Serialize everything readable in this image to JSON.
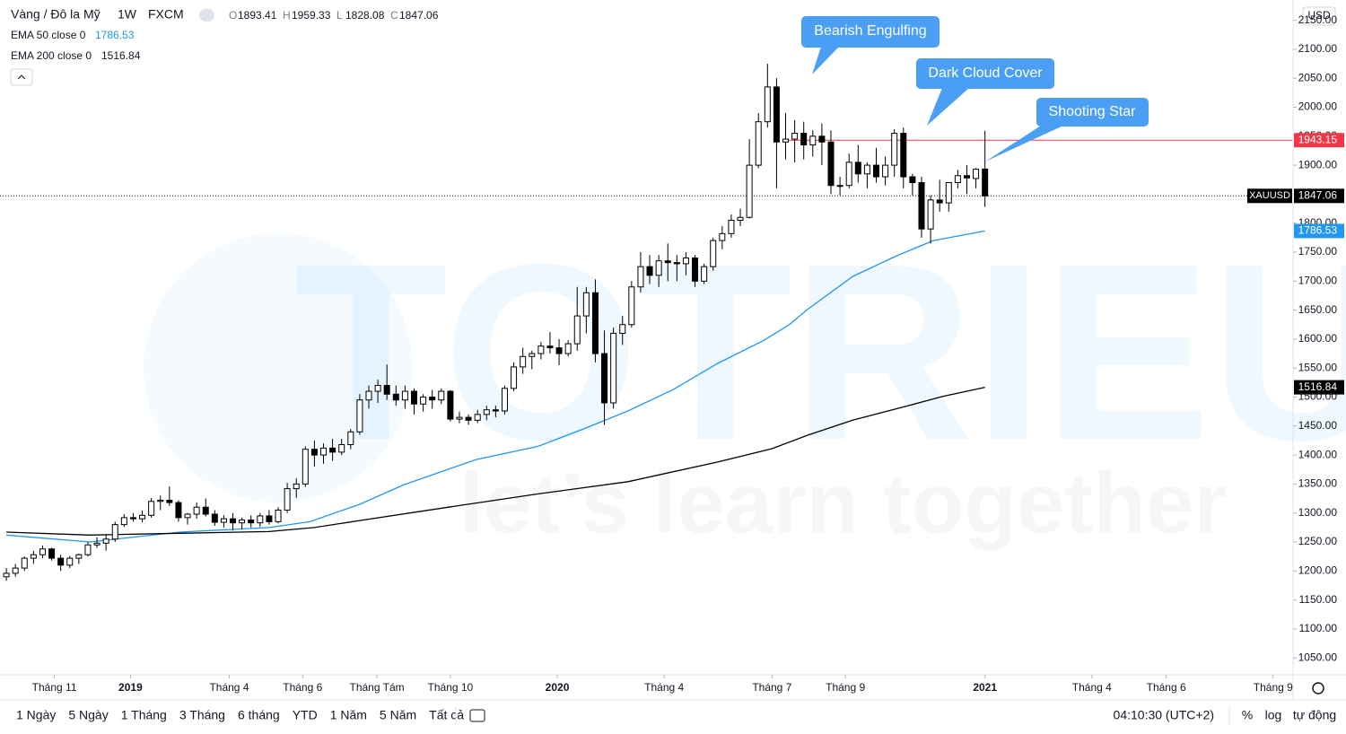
{
  "chart_data": {
    "type": "candlestick",
    "title": "Vàng / Đô la Mỹ",
    "interval": "1W",
    "source": "FXCM",
    "ohlc_labels": [
      "O",
      "H",
      "L",
      "C"
    ],
    "currency": "USD",
    "ylim": [
      1024,
      2185
    ],
    "yticks": [
      {
        "value": 1050,
        "label": "1050.00"
      },
      {
        "value": 1100,
        "label": "1100.00"
      },
      {
        "value": 1150,
        "label": "1150.00"
      },
      {
        "value": 1200,
        "label": "1200.00"
      },
      {
        "value": 1250,
        "label": "1250.00"
      },
      {
        "value": 1300,
        "label": "1300.00"
      },
      {
        "value": 1350,
        "label": "1350.00"
      },
      {
        "value": 1400,
        "label": "1400.00"
      },
      {
        "value": 1450,
        "label": "1450.00"
      },
      {
        "value": 1500,
        "label": "1500.00"
      },
      {
        "value": 1550,
        "label": "1550.00"
      },
      {
        "value": 1600,
        "label": "1600.00"
      },
      {
        "value": 1650,
        "label": "1650.00"
      },
      {
        "value": 1700,
        "label": "1700.00"
      },
      {
        "value": 1750,
        "label": "1750.00"
      },
      {
        "value": 1800,
        "label": "1800.00"
      },
      {
        "value": 1850,
        "label": "1850.00"
      },
      {
        "value": 1900,
        "label": "1900.00"
      },
      {
        "value": 1950,
        "label": "1950.00"
      },
      {
        "value": 2000,
        "label": "2000.00"
      },
      {
        "value": 2050,
        "label": "2050.00"
      },
      {
        "value": 2100,
        "label": "2100.00"
      },
      {
        "value": 2150,
        "label": "2150.00"
      }
    ],
    "xlim": [
      -0.7,
      141.9
    ],
    "xticks": [
      {
        "value": 5.3,
        "label": "Tháng 11"
      },
      {
        "value": 13.7,
        "label": "2019"
      },
      {
        "value": 24.6,
        "label": "Tháng 4"
      },
      {
        "value": 32.7,
        "label": "Tháng 6"
      },
      {
        "value": 40.9,
        "label": "Tháng Tám"
      },
      {
        "value": 49,
        "label": "Tháng 10"
      },
      {
        "value": 60.8,
        "label": "2020"
      },
      {
        "value": 72.6,
        "label": "Tháng 4"
      },
      {
        "value": 84.5,
        "label": "Tháng 7"
      },
      {
        "value": 92.6,
        "label": "Tháng 9"
      },
      {
        "value": 108,
        "label": "2021"
      },
      {
        "value": 119.8,
        "label": "Tháng 4"
      },
      {
        "value": 128,
        "label": "Tháng 6"
      },
      {
        "value": 139.8,
        "label": "Tháng 9"
      }
    ],
    "grid": false,
    "up_color": "#ffffff",
    "down_color": "#000000",
    "ohlc": [
      [
        1190,
        1205,
        1183,
        1196
      ],
      [
        1196,
        1212,
        1190,
        1205
      ],
      [
        1205,
        1225,
        1200,
        1222
      ],
      [
        1222,
        1235,
        1212,
        1228
      ],
      [
        1228,
        1244,
        1222,
        1238
      ],
      [
        1238,
        1240,
        1218,
        1222
      ],
      [
        1222,
        1228,
        1200,
        1210
      ],
      [
        1210,
        1226,
        1205,
        1222
      ],
      [
        1222,
        1230,
        1212,
        1228
      ],
      [
        1228,
        1250,
        1225,
        1245
      ],
      [
        1245,
        1258,
        1240,
        1248
      ],
      [
        1248,
        1262,
        1235,
        1255
      ],
      [
        1255,
        1285,
        1250,
        1280
      ],
      [
        1280,
        1298,
        1276,
        1292
      ],
      [
        1292,
        1300,
        1285,
        1290
      ],
      [
        1290,
        1304,
        1284,
        1296
      ],
      [
        1296,
        1326,
        1292,
        1320
      ],
      [
        1320,
        1330,
        1305,
        1322
      ],
      [
        1322,
        1346,
        1312,
        1318
      ],
      [
        1318,
        1322,
        1285,
        1292
      ],
      [
        1292,
        1300,
        1280,
        1298
      ],
      [
        1298,
        1318,
        1290,
        1310
      ],
      [
        1310,
        1325,
        1294,
        1298
      ],
      [
        1298,
        1305,
        1278,
        1284
      ],
      [
        1284,
        1296,
        1275,
        1290
      ],
      [
        1290,
        1300,
        1270,
        1283
      ],
      [
        1283,
        1292,
        1272,
        1288
      ],
      [
        1288,
        1296,
        1275,
        1283
      ],
      [
        1283,
        1300,
        1276,
        1295
      ],
      [
        1295,
        1305,
        1280,
        1285
      ],
      [
        1285,
        1310,
        1282,
        1305
      ],
      [
        1305,
        1352,
        1300,
        1342
      ],
      [
        1342,
        1360,
        1326,
        1350
      ],
      [
        1350,
        1415,
        1345,
        1410
      ],
      [
        1410,
        1425,
        1380,
        1400
      ],
      [
        1400,
        1420,
        1385,
        1412
      ],
      [
        1412,
        1428,
        1390,
        1405
      ],
      [
        1405,
        1428,
        1400,
        1418
      ],
      [
        1418,
        1445,
        1410,
        1440
      ],
      [
        1440,
        1505,
        1435,
        1495
      ],
      [
        1495,
        1520,
        1480,
        1510
      ],
      [
        1510,
        1530,
        1490,
        1520
      ],
      [
        1520,
        1556,
        1495,
        1505
      ],
      [
        1505,
        1520,
        1485,
        1495
      ],
      [
        1495,
        1520,
        1480,
        1510
      ],
      [
        1510,
        1515,
        1470,
        1488
      ],
      [
        1488,
        1505,
        1475,
        1500
      ],
      [
        1500,
        1512,
        1480,
        1495
      ],
      [
        1495,
        1515,
        1488,
        1510
      ],
      [
        1510,
        1512,
        1458,
        1462
      ],
      [
        1462,
        1475,
        1455,
        1465
      ],
      [
        1465,
        1470,
        1452,
        1460
      ],
      [
        1460,
        1478,
        1455,
        1470
      ],
      [
        1470,
        1485,
        1460,
        1478
      ],
      [
        1478,
        1485,
        1465,
        1476
      ],
      [
        1476,
        1520,
        1470,
        1515
      ],
      [
        1515,
        1560,
        1510,
        1552
      ],
      [
        1552,
        1585,
        1540,
        1570
      ],
      [
        1570,
        1580,
        1548,
        1575
      ],
      [
        1575,
        1595,
        1565,
        1588
      ],
      [
        1588,
        1612,
        1575,
        1585
      ],
      [
        1585,
        1600,
        1555,
        1575
      ],
      [
        1575,
        1598,
        1570,
        1592
      ],
      [
        1592,
        1690,
        1580,
        1640
      ],
      [
        1640,
        1690,
        1610,
        1680
      ],
      [
        1680,
        1703,
        1560,
        1575
      ],
      [
        1575,
        1615,
        1452,
        1490
      ],
      [
        1490,
        1620,
        1480,
        1610
      ],
      [
        1610,
        1640,
        1590,
        1625
      ],
      [
        1625,
        1700,
        1620,
        1690
      ],
      [
        1690,
        1750,
        1680,
        1725
      ],
      [
        1725,
        1745,
        1695,
        1710
      ],
      [
        1710,
        1745,
        1690,
        1735
      ],
      [
        1735,
        1765,
        1700,
        1732
      ],
      [
        1732,
        1745,
        1700,
        1730
      ],
      [
        1730,
        1750,
        1710,
        1740
      ],
      [
        1740,
        1745,
        1690,
        1700
      ],
      [
        1700,
        1730,
        1695,
        1725
      ],
      [
        1725,
        1775,
        1718,
        1770
      ],
      [
        1770,
        1795,
        1755,
        1782
      ],
      [
        1782,
        1815,
        1775,
        1805
      ],
      [
        1805,
        1825,
        1795,
        1810
      ],
      [
        1810,
        1945,
        1808,
        1900
      ],
      [
        1900,
        1990,
        1895,
        1975
      ],
      [
        1975,
        2075,
        1965,
        2035
      ],
      [
        2035,
        2050,
        1860,
        1940
      ],
      [
        1940,
        1990,
        1910,
        1945
      ],
      [
        1945,
        1978,
        1905,
        1955
      ],
      [
        1955,
        1975,
        1910,
        1935
      ],
      [
        1935,
        1960,
        1915,
        1950
      ],
      [
        1950,
        1972,
        1900,
        1940
      ],
      [
        1940,
        1960,
        1850,
        1865
      ],
      [
        1865,
        1880,
        1848,
        1865
      ],
      [
        1865,
        1920,
        1860,
        1905
      ],
      [
        1905,
        1935,
        1870,
        1885
      ],
      [
        1885,
        1905,
        1860,
        1900
      ],
      [
        1900,
        1930,
        1870,
        1880
      ],
      [
        1880,
        1915,
        1865,
        1900
      ],
      [
        1900,
        1962,
        1880,
        1955
      ],
      [
        1955,
        1965,
        1860,
        1880
      ],
      [
        1880,
        1885,
        1848,
        1870
      ],
      [
        1870,
        1880,
        1775,
        1790
      ],
      [
        1790,
        1848,
        1765,
        1840
      ],
      [
        1840,
        1875,
        1820,
        1835
      ],
      [
        1835,
        1870,
        1820,
        1870
      ],
      [
        1870,
        1892,
        1860,
        1882
      ],
      [
        1882,
        1900,
        1850,
        1878
      ],
      [
        1877,
        1895,
        1860,
        1893
      ],
      [
        1893.41,
        1959.33,
        1828.08,
        1847.06
      ]
    ],
    "indicators": [
      {
        "name": "EMA 50 close 0",
        "color": "#2196f3",
        "x": [
          0,
          9.2,
          19.1,
          29,
          33.5,
          39,
          43.9,
          51.8,
          58.7,
          63.7,
          68.6,
          73.6,
          78.5,
          83.5,
          86.4,
          88.4,
          93.4,
          98.3,
          102.3,
          108
        ],
        "values": [
          1262,
          1250,
          1267,
          1275,
          1285,
          1315,
          1349,
          1392,
          1415,
          1445,
          1476,
          1513,
          1558,
          1597,
          1625,
          1651,
          1708,
          1744,
          1770,
          1786.53
        ]
      },
      {
        "name": "EMA 200 close 0",
        "color": "#000000",
        "x": [
          0,
          9.2,
          19.1,
          29,
          34,
          39,
          48.8,
          58.7,
          68.6,
          78.5,
          84.5,
          88.4,
          93.4,
          98.3,
          103.3,
          108
        ],
        "values": [
          1267,
          1262,
          1265,
          1268,
          1275,
          1287,
          1310,
          1333,
          1354,
          1388,
          1411,
          1434,
          1460,
          1480,
          1501,
          1516.84
        ]
      }
    ],
    "hline": {
      "value": 1943.15,
      "color": "#f23645"
    },
    "symbol_label": "XAUUSD",
    "annotations": [
      "Bearish Engulfing",
      "Dark Cloud Cover",
      "Shooting Star"
    ],
    "watermark": [
      "TOTRIEU",
      "let’s learn together"
    ],
    "toolbar": {
      "ranges": [
        "1 Ngày",
        "5 Ngày",
        "1 Tháng",
        "3 Tháng",
        "6 tháng",
        "YTD",
        "1 Năm",
        "5 Năm",
        "Tất cả"
      ],
      "time": "04:10:30 (UTC+2)",
      "options": [
        "%",
        "log",
        "tự động"
      ]
    }
  }
}
